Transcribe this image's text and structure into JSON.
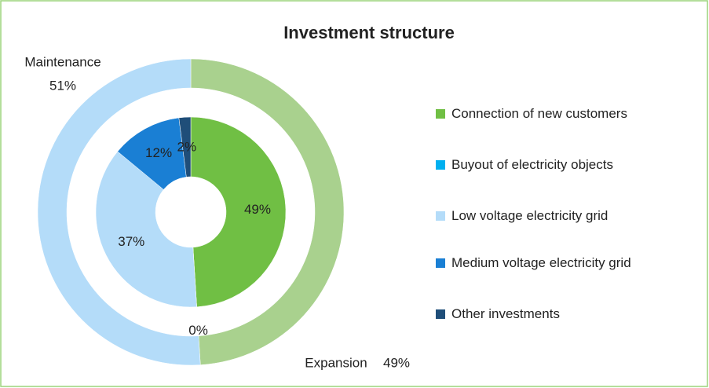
{
  "chart_data": {
    "type": "donut",
    "title": "Investment structure",
    "rings": [
      {
        "categories": [
          "Expansion",
          "Maintenance"
        ],
        "values": [
          49,
          51
        ],
        "value_labels": [
          "49%",
          "51%"
        ],
        "colors": [
          "#a9d18e",
          "#b4dcf9"
        ]
      },
      {
        "categories": [
          "Connection of new customers",
          "Buyout of electricity objects",
          "Low voltage electricity grid",
          "Medium voltage electricity grid",
          "Other investments"
        ],
        "values": [
          49,
          0,
          37,
          12,
          2
        ],
        "value_labels": [
          "49%",
          "0%",
          "37%",
          "12%",
          "2%"
        ],
        "colors": [
          "#70bf44",
          "#00b0f0",
          "#b4dcf9",
          "#1a7fd4",
          "#1f4e79"
        ]
      }
    ],
    "legend": "right"
  }
}
